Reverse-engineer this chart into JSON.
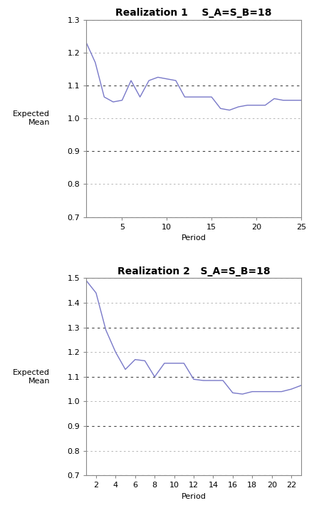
{
  "plot1": {
    "title": "Realization 1    S_A=S_B=18",
    "xlabel": "Period",
    "ylabel": "Expected\nMean",
    "xlim": [
      1,
      25
    ],
    "ylim": [
      0.7,
      1.3
    ],
    "yticks": [
      0.7,
      0.8,
      0.9,
      1.0,
      1.1,
      1.2,
      1.3
    ],
    "xticks": [
      5,
      10,
      15,
      20,
      25
    ],
    "x": [
      1,
      2,
      3,
      4,
      5,
      6,
      7,
      8,
      9,
      10,
      11,
      12,
      13,
      14,
      15,
      16,
      17,
      18,
      19,
      20,
      21,
      22,
      23,
      24,
      25
    ],
    "y": [
      1.23,
      1.17,
      1.065,
      1.05,
      1.055,
      1.115,
      1.065,
      1.115,
      1.125,
      1.12,
      1.115,
      1.065,
      1.065,
      1.065,
      1.065,
      1.03,
      1.025,
      1.035,
      1.04,
      1.04,
      1.04,
      1.06,
      1.055,
      1.055,
      1.055
    ],
    "line_color": "#7878c8"
  },
  "plot2": {
    "title": "Realization 2   S_A=S_B=18",
    "xlabel": "Period",
    "ylabel": "Expected\nMean",
    "xlim": [
      1,
      23
    ],
    "ylim": [
      0.7,
      1.5
    ],
    "yticks": [
      0.7,
      0.8,
      0.9,
      1.0,
      1.1,
      1.2,
      1.3,
      1.4,
      1.5
    ],
    "xticks": [
      2,
      4,
      6,
      8,
      10,
      12,
      14,
      16,
      18,
      20,
      22
    ],
    "x": [
      1,
      2,
      3,
      4,
      5,
      6,
      7,
      8,
      9,
      10,
      11,
      12,
      13,
      14,
      15,
      16,
      17,
      18,
      19,
      20,
      21,
      22,
      23
    ],
    "y": [
      1.49,
      1.44,
      1.29,
      1.2,
      1.13,
      1.17,
      1.165,
      1.1,
      1.155,
      1.155,
      1.155,
      1.09,
      1.085,
      1.085,
      1.085,
      1.035,
      1.03,
      1.04,
      1.04,
      1.04,
      1.04,
      1.05,
      1.065
    ],
    "line_color": "#7878c8"
  },
  "fig_background": "#ffffff",
  "grid_color_dark": "#444444",
  "grid_color_light": "#aaaaaa",
  "line_width": 1.0,
  "title_fontsize": 10,
  "label_fontsize": 8,
  "tick_fontsize": 8
}
